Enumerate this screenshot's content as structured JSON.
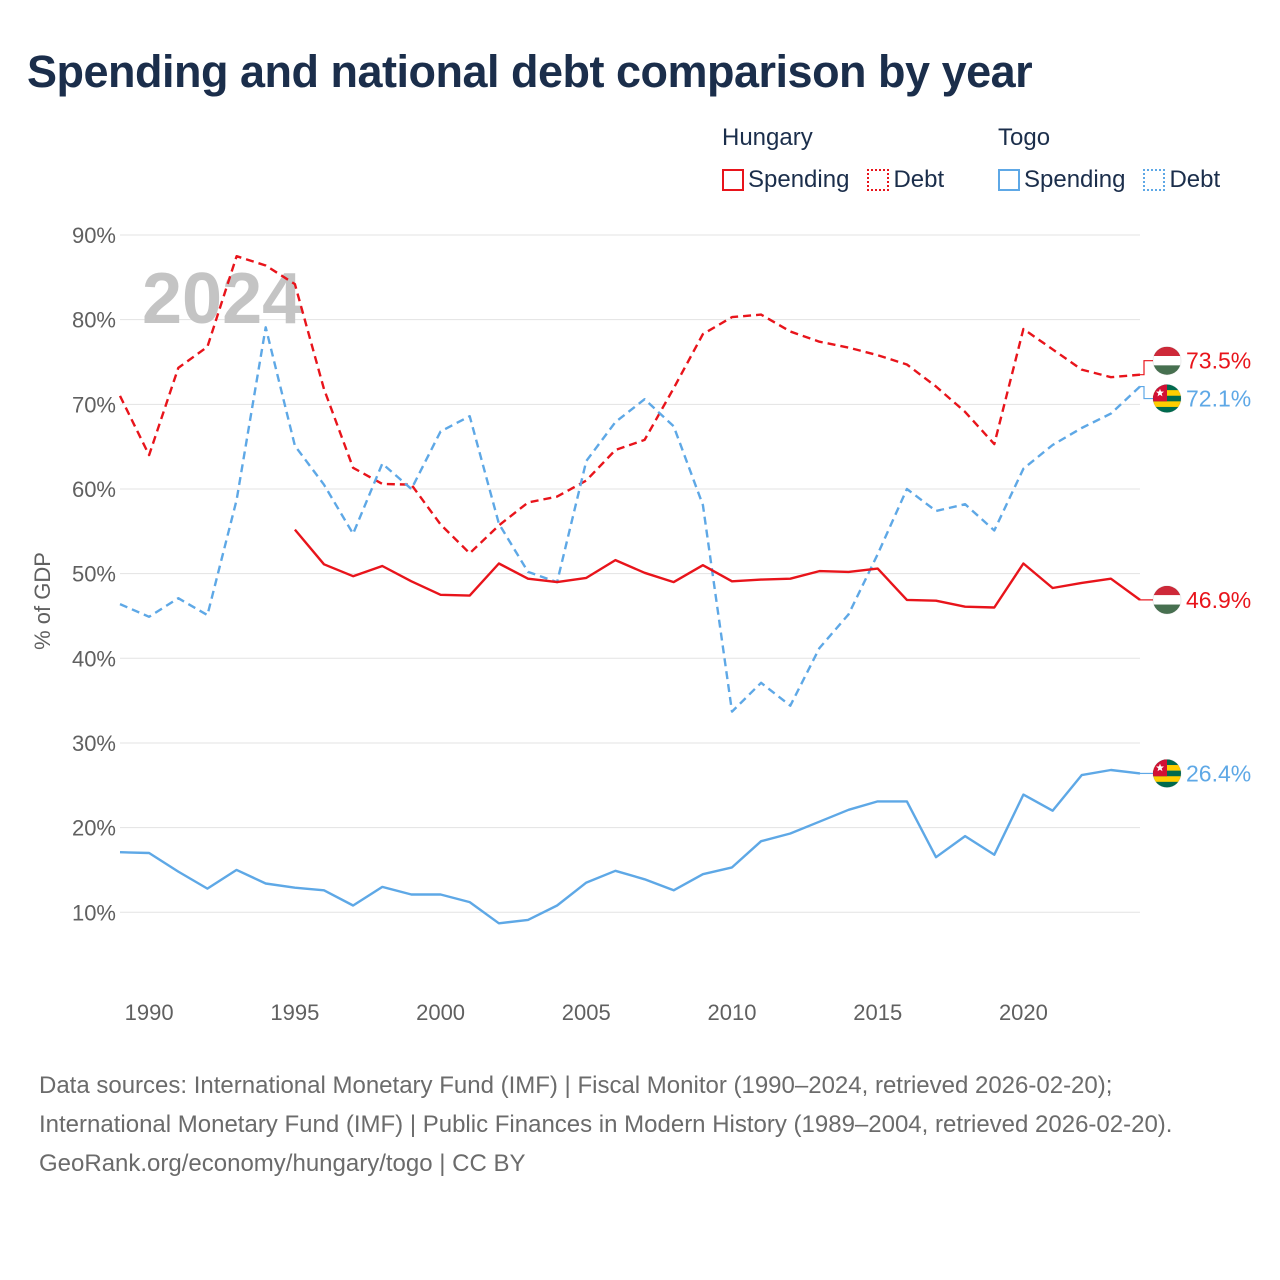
{
  "title": "Spending and national debt comparison by year",
  "legend": {
    "groups": [
      {
        "country": "Hungary",
        "color": "#e8141b",
        "items": [
          {
            "label": "Spending",
            "style": "solid"
          },
          {
            "label": "Debt",
            "style": "dotted"
          }
        ]
      },
      {
        "country": "Togo",
        "color": "#5ea8e6",
        "items": [
          {
            "label": "Spending",
            "style": "solid"
          },
          {
            "label": "Debt",
            "style": "dotted"
          }
        ]
      }
    ]
  },
  "footer": {
    "sources": "Data sources: International Monetary Fund (IMF) | Fiscal Monitor (1990–2024, retrieved 2026-02-20); International Monetary Fund (IMF) | Public Finances in Modern History (1989–2004, retrieved 2026-02-20).",
    "credit": "GeoRank.org/economy/hungary/togo | CC BY"
  },
  "chart_data": {
    "type": "line",
    "title": "Spending and national debt comparison by year",
    "ylabel": "% of GDP",
    "xlabel": "",
    "xlim": [
      1989,
      2024
    ],
    "ylim": [
      2,
      90
    ],
    "xticks": [
      1990,
      1995,
      2000,
      2005,
      2010,
      2015,
      2020
    ],
    "xtick_labels": [
      "1990",
      "1995",
      "2000",
      "2005",
      "2010",
      "2015",
      "2020"
    ],
    "yticks": [
      10,
      20,
      30,
      40,
      50,
      60,
      70,
      80,
      90
    ],
    "ytick_labels": [
      "10%",
      "20%",
      "30%",
      "40%",
      "50%",
      "60%",
      "70%",
      "80%",
      "90%"
    ],
    "grid": true,
    "year_marker": "2024",
    "series": [
      {
        "name": "Hungary Debt",
        "country": "Hungary",
        "indicator": "Debt",
        "color": "#e8141b",
        "dash": "dashed",
        "x": [
          1989,
          1990,
          1991,
          1992,
          1993,
          1994,
          1995,
          1996,
          1997,
          1998,
          1999,
          2000,
          2001,
          2002,
          2003,
          2004,
          2005,
          2006,
          2007,
          2008,
          2009,
          2010,
          2011,
          2012,
          2013,
          2014,
          2015,
          2016,
          2017,
          2018,
          2019,
          2020,
          2021,
          2022,
          2023,
          2024
        ],
        "values": [
          71.0,
          64.0,
          74.3,
          76.8,
          87.5,
          86.4,
          84.2,
          71.8,
          62.5,
          60.6,
          60.5,
          55.8,
          52.4,
          55.7,
          58.4,
          59.1,
          61.0,
          64.6,
          65.8,
          71.9,
          78.3,
          80.3,
          80.6,
          78.6,
          77.4,
          76.7,
          75.8,
          74.7,
          72.1,
          69.1,
          65.3,
          78.9,
          76.5,
          74.1,
          73.2,
          73.5
        ],
        "end_label": "73.5%",
        "flag": "hungary"
      },
      {
        "name": "Togo Debt",
        "country": "Togo",
        "indicator": "Debt",
        "color": "#5ea8e6",
        "dash": "dashed",
        "x": [
          1989,
          1990,
          1991,
          1992,
          1993,
          1994,
          1995,
          1996,
          1997,
          1998,
          1999,
          2000,
          2001,
          2002,
          2003,
          2004,
          2005,
          2006,
          2007,
          2008,
          2009,
          2010,
          2011,
          2012,
          2013,
          2014,
          2015,
          2016,
          2017,
          2018,
          2019,
          2020,
          2021,
          2022,
          2023,
          2024
        ],
        "values": [
          46.4,
          44.9,
          47.1,
          45.1,
          58.7,
          79.1,
          65.1,
          60.5,
          54.7,
          63.0,
          60.0,
          66.8,
          68.6,
          55.9,
          50.2,
          49.0,
          63.3,
          67.9,
          70.6,
          67.4,
          58.1,
          33.7,
          37.1,
          34.4,
          41.2,
          45.2,
          52.3,
          60.0,
          57.4,
          58.2,
          55.1,
          62.4,
          65.2,
          67.2,
          68.9,
          72.1
        ],
        "end_label": "72.1%",
        "flag": "togo"
      },
      {
        "name": "Hungary Spending",
        "country": "Hungary",
        "indicator": "Spending",
        "color": "#e8141b",
        "dash": "solid",
        "x": [
          1995,
          1996,
          1997,
          1998,
          1999,
          2000,
          2001,
          2002,
          2003,
          2004,
          2005,
          2006,
          2007,
          2008,
          2009,
          2010,
          2011,
          2012,
          2013,
          2014,
          2015,
          2016,
          2017,
          2018,
          2019,
          2020,
          2021,
          2022,
          2023,
          2024
        ],
        "values": [
          55.2,
          51.1,
          49.7,
          50.9,
          49.1,
          47.5,
          47.4,
          51.2,
          49.4,
          49.0,
          49.5,
          51.6,
          50.1,
          49.0,
          51.0,
          49.1,
          49.3,
          49.4,
          50.3,
          50.2,
          50.6,
          46.9,
          46.8,
          46.1,
          46.0,
          51.2,
          48.3,
          48.9,
          49.4,
          46.9
        ],
        "end_label": "46.9%",
        "flag": "hungary"
      },
      {
        "name": "Togo Spending",
        "country": "Togo",
        "indicator": "Spending",
        "color": "#5ea8e6",
        "dash": "solid",
        "x": [
          1989,
          1990,
          1991,
          1992,
          1993,
          1994,
          1995,
          1996,
          1997,
          1998,
          1999,
          2000,
          2001,
          2002,
          2003,
          2004,
          2005,
          2006,
          2007,
          2008,
          2009,
          2010,
          2011,
          2012,
          2013,
          2014,
          2015,
          2016,
          2017,
          2018,
          2019,
          2020,
          2021,
          2022,
          2023,
          2024
        ],
        "values": [
          17.1,
          17.0,
          14.8,
          12.8,
          15.0,
          13.4,
          12.9,
          12.6,
          10.8,
          13.0,
          12.1,
          12.1,
          11.2,
          8.7,
          9.1,
          10.8,
          13.5,
          14.9,
          13.9,
          12.6,
          14.5,
          15.3,
          18.4,
          19.3,
          20.7,
          22.1,
          23.1,
          23.1,
          16.5,
          19.0,
          16.8,
          23.9,
          22.0,
          26.2,
          26.8,
          26.4
        ],
        "end_label": "26.4%",
        "flag": "togo"
      }
    ]
  }
}
